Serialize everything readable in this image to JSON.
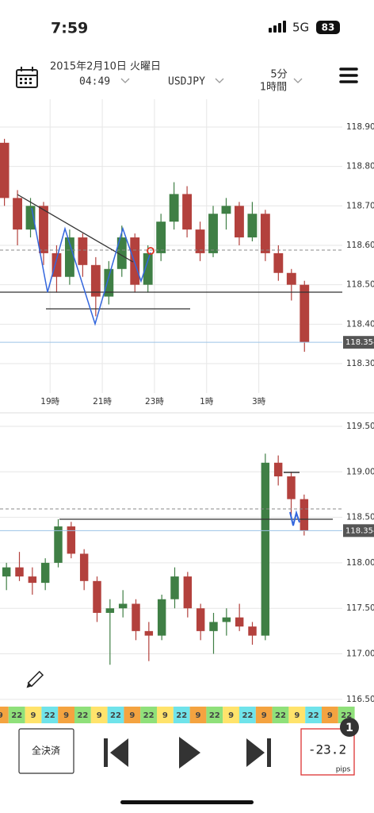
{
  "status_bar": {
    "time": "7:59",
    "network": "5G",
    "battery": 83
  },
  "header": {
    "date": "2015年2月10日 火曜日",
    "time": "04:49",
    "symbol": "USDJPY",
    "timeframe_1": "5分",
    "timeframe_2": "1時間"
  },
  "chart_data": [
    {
      "type": "candlestick",
      "x": [
        17.25,
        17.75,
        18.25,
        18.75,
        19.25,
        19.75,
        20.25,
        20.75,
        21.25,
        21.75,
        22.25,
        22.75,
        23.25,
        23.75,
        24.25,
        24.75,
        25.25,
        25.75,
        26.25,
        26.75,
        27.25,
        27.75,
        28.25,
        28.75
      ],
      "open": [
        118.86,
        118.72,
        118.64,
        118.7,
        118.58,
        118.52,
        118.62,
        118.55,
        118.47,
        118.54,
        118.62,
        118.5,
        118.58,
        118.66,
        118.73,
        118.64,
        118.58,
        118.68,
        118.7,
        118.62,
        118.68,
        118.58,
        118.53,
        118.5
      ],
      "high": [
        118.87,
        118.74,
        118.72,
        118.71,
        118.6,
        118.64,
        118.63,
        118.57,
        118.56,
        118.65,
        118.63,
        118.6,
        118.68,
        118.76,
        118.75,
        118.66,
        118.7,
        118.72,
        118.71,
        118.71,
        118.69,
        118.6,
        118.54,
        118.51
      ],
      "low": [
        118.7,
        118.6,
        118.62,
        118.55,
        118.48,
        118.5,
        118.52,
        118.42,
        118.45,
        118.52,
        118.48,
        118.48,
        118.56,
        118.64,
        118.62,
        118.56,
        118.57,
        118.64,
        118.6,
        118.61,
        118.56,
        118.51,
        118.46,
        118.33
      ],
      "close": [
        118.72,
        118.64,
        118.7,
        118.58,
        118.52,
        118.62,
        118.55,
        118.47,
        118.54,
        118.62,
        118.5,
        118.58,
        118.66,
        118.73,
        118.64,
        118.58,
        118.68,
        118.7,
        118.62,
        118.68,
        118.58,
        118.53,
        118.5,
        118.354
      ],
      "xlim": [
        17.08,
        30.2
      ],
      "xticks": [
        {
          "value": 19,
          "label": "19時"
        },
        {
          "value": 21,
          "label": "21時"
        },
        {
          "value": 23,
          "label": "23時"
        },
        {
          "value": 25,
          "label": "1時"
        },
        {
          "value": 27,
          "label": "3時"
        }
      ],
      "ylim": [
        118.2255,
        118.9704
      ],
      "yticks": [
        {
          "value": 118.9,
          "label": "118.90"
        },
        {
          "value": 118.8,
          "label": "118.80"
        },
        {
          "value": 118.7,
          "label": "118.70"
        },
        {
          "value": 118.6,
          "label": "118.60"
        },
        {
          "value": 118.5,
          "label": "118.50"
        },
        {
          "value": 118.4,
          "label": "118.40"
        },
        {
          "value": 118.3,
          "label": "118.30"
        }
      ],
      "last_price": {
        "value": 118.354,
        "label": "118.354"
      },
      "up_color": "#3f7f45",
      "down_color": "#b3413d",
      "grid": true
    },
    {
      "type": "candlestick",
      "categories": [
        null,
        null,
        null,
        null,
        null,
        null,
        null,
        null,
        null,
        null,
        null,
        null,
        null,
        null,
        null,
        null,
        null,
        null,
        null,
        null,
        null,
        null,
        null,
        null
      ],
      "open": [
        117.85,
        117.95,
        117.85,
        117.78,
        118.0,
        118.4,
        118.1,
        117.8,
        117.45,
        117.5,
        117.55,
        117.25,
        117.2,
        117.6,
        117.85,
        117.5,
        117.25,
        117.35,
        117.4,
        117.3,
        117.2,
        119.1,
        118.95,
        118.7
      ],
      "high": [
        118.0,
        118.12,
        117.95,
        118.05,
        118.48,
        118.45,
        118.15,
        117.85,
        117.6,
        117.7,
        117.6,
        117.35,
        117.65,
        117.95,
        117.9,
        117.55,
        117.45,
        117.5,
        117.55,
        117.35,
        119.2,
        119.18,
        119.0,
        118.75
      ],
      "low": [
        117.7,
        117.8,
        117.65,
        117.7,
        117.95,
        118.05,
        117.7,
        117.35,
        116.88,
        117.4,
        117.15,
        116.92,
        117.15,
        117.5,
        117.4,
        117.15,
        117.0,
        117.2,
        117.25,
        117.1,
        117.15,
        118.85,
        118.5,
        118.3
      ],
      "close": [
        117.95,
        117.85,
        117.78,
        118.0,
        118.4,
        118.1,
        117.8,
        117.45,
        117.5,
        117.55,
        117.25,
        117.2,
        117.6,
        117.85,
        117.5,
        117.25,
        117.35,
        117.4,
        117.3,
        117.2,
        119.1,
        118.95,
        118.7,
        118.354
      ],
      "ylim": [
        116.42,
        119.648
      ],
      "yticks": [
        {
          "value": 119.5,
          "label": "119.50"
        },
        {
          "value": 119,
          "label": "119.00"
        },
        {
          "value": 118.5,
          "label": "118.50"
        },
        {
          "value": 118,
          "label": "118.00"
        },
        {
          "value": 117.5,
          "label": "117.50"
        },
        {
          "value": 117,
          "label": "117.00"
        },
        {
          "value": 116.5,
          "label": "116.50"
        }
      ],
      "last_price": {
        "value": 118.354,
        "label": "118.354"
      },
      "up_color": "#3f7f45",
      "down_color": "#b3413d",
      "grid": true
    }
  ],
  "session_strip": [
    "9",
    "22",
    "9",
    "22",
    "9",
    "22",
    "9",
    "22",
    "9",
    "22",
    "9",
    "22",
    "9",
    "22",
    "9",
    "22",
    "9",
    "22",
    "9",
    "22",
    "9",
    "22"
  ],
  "controls": {
    "close_all": "全決済",
    "pips_value": -23.2,
    "pips_unit": "pips",
    "badge": 1
  }
}
